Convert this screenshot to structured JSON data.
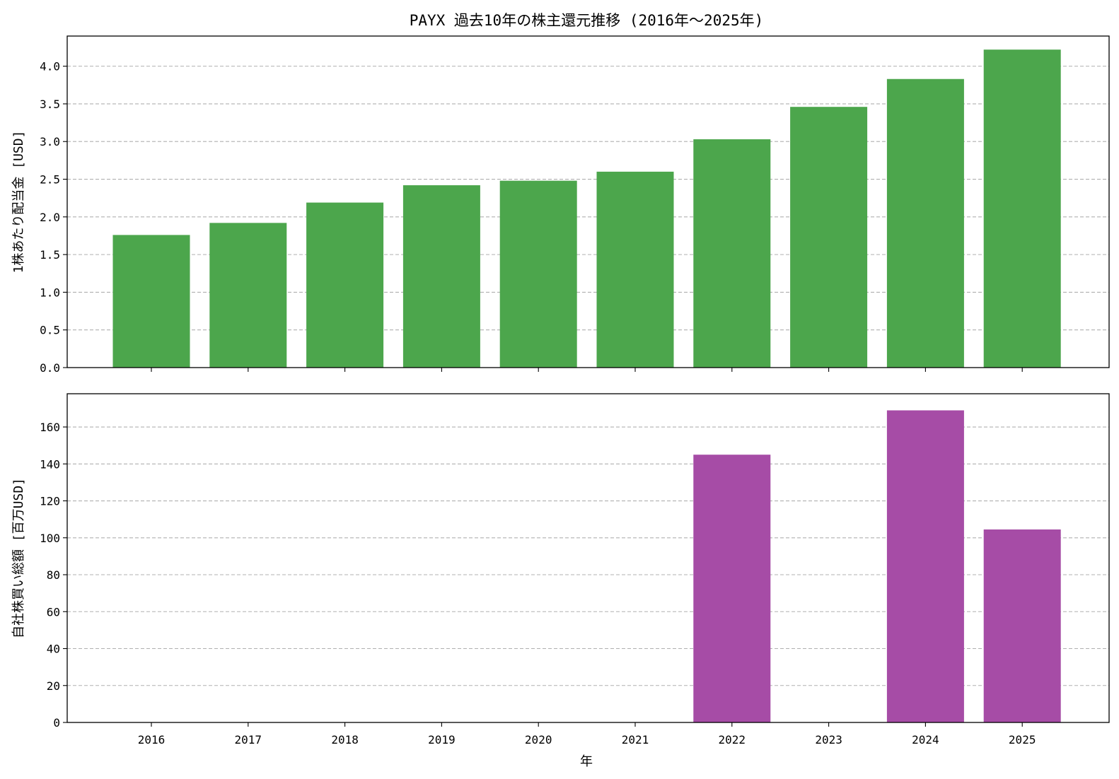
{
  "chart_data": {
    "title": "PAYX 過去10年の株主還元推移 (2016年～2025年)",
    "xlabel": "年",
    "categories": [
      "2016",
      "2017",
      "2018",
      "2019",
      "2020",
      "2021",
      "2022",
      "2023",
      "2024",
      "2025"
    ],
    "grid": "y-dashed",
    "panels": [
      {
        "type": "bar",
        "ylabel": "1株あたり配当金 [USD]",
        "ylim": [
          0,
          4.4
        ],
        "yticks": [
          0.0,
          0.5,
          1.0,
          1.5,
          2.0,
          2.5,
          3.0,
          3.5,
          4.0
        ],
        "ytick_labels": [
          "0.0",
          "0.5",
          "1.0",
          "1.5",
          "2.0",
          "2.5",
          "3.0",
          "3.5",
          "4.0"
        ],
        "color": "#4ca64c",
        "values": [
          1.76,
          1.92,
          2.19,
          2.42,
          2.48,
          2.6,
          3.03,
          3.46,
          3.83,
          4.22
        ]
      },
      {
        "type": "bar",
        "ylabel": "自社株買い総額 [百万USD]",
        "ylim": [
          0,
          178
        ],
        "yticks": [
          0,
          20,
          40,
          60,
          80,
          100,
          120,
          140,
          160
        ],
        "ytick_labels": [
          "0",
          "20",
          "40",
          "60",
          "80",
          "100",
          "120",
          "140",
          "160"
        ],
        "color": "#a64ca6",
        "values": [
          0,
          0,
          0,
          0,
          0,
          0,
          145,
          0,
          169,
          104.5
        ]
      }
    ]
  }
}
